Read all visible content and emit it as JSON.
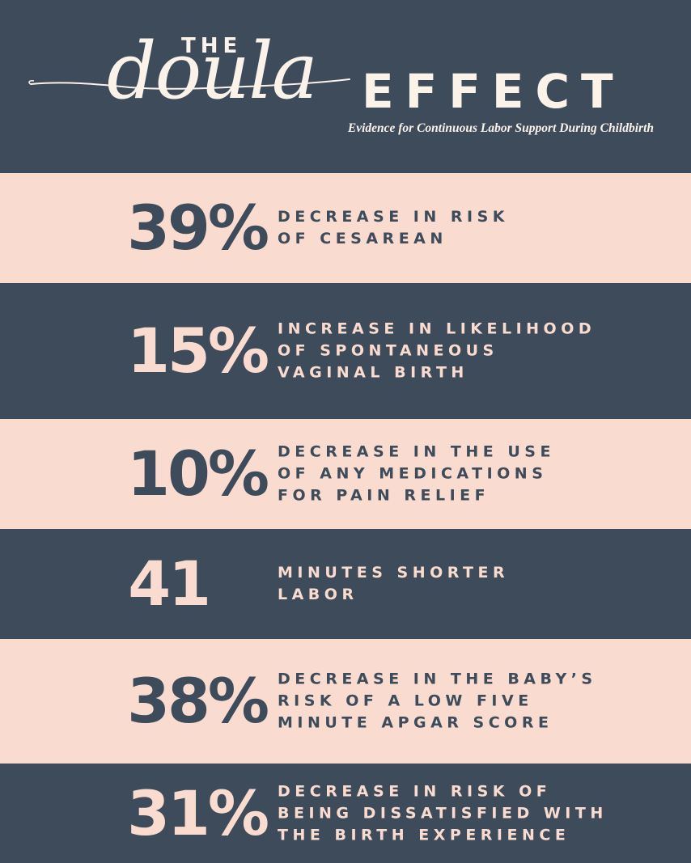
{
  "header": {
    "title_the": "THE",
    "title_doula": "doula",
    "title_effect": "EFFECT",
    "subtitle": "Evidence for Continuous Labor Support During Childbirth"
  },
  "colors": {
    "navy": "#3d4b5a",
    "blush": "#fadbd0",
    "cream": "#fbf2ea"
  },
  "stats": [
    {
      "value": "39%",
      "line1": "DECREASE IN RISK",
      "line2": "OF CESAREAN",
      "line3": ""
    },
    {
      "value": "15%",
      "line1": "INCREASE IN LIKELIHOOD",
      "line2": "OF SPONTANEOUS",
      "line3": "VAGINAL BIRTH"
    },
    {
      "value": "10%",
      "line1": "DECREASE IN THE USE",
      "line2": "OF ANY MEDICATIONS",
      "line3": "FOR PAIN RELIEF"
    },
    {
      "value": "41",
      "line1": "MINUTES SHORTER",
      "line2": "LABOR",
      "line3": ""
    },
    {
      "value": "38%",
      "line1": "DECREASE IN THE BABY’S",
      "line2": "RISK OF A LOW FIVE",
      "line3": "MINUTE APGAR SCORE"
    },
    {
      "value": "31%",
      "line1": "DECREASE IN RISK OF",
      "line2": "BEING DISSATISFIED WITH",
      "line3": "THE BIRTH EXPERIENCE"
    }
  ]
}
